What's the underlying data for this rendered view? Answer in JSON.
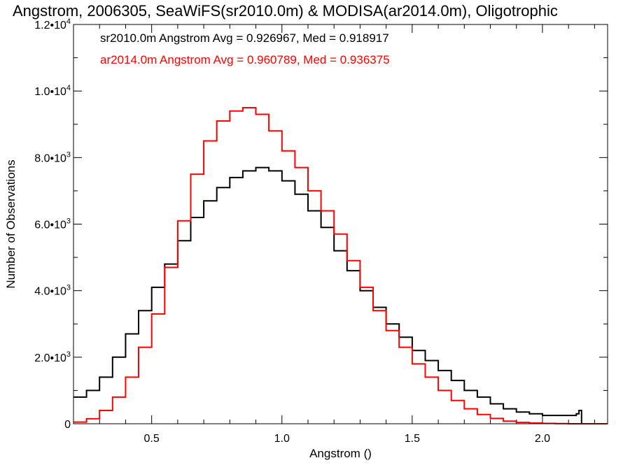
{
  "chart_data": {
    "type": "line",
    "title": "Angstrom, 2006305, SeaWiFS(sr2010.0m) & MODISA(ar2014.0m), Oligotrophic",
    "xlabel": "Angstrom ()",
    "ylabel": "Number of Observations",
    "xlim": [
      0.2,
      2.25
    ],
    "ylim": [
      0,
      12000
    ],
    "x_ticks": [
      {
        "value": 0.5,
        "label": "0.5"
      },
      {
        "value": 1.0,
        "label": "1.0"
      },
      {
        "value": 1.5,
        "label": "1.5"
      },
      {
        "value": 2.0,
        "label": "2.0"
      }
    ],
    "y_ticks": [
      {
        "value": 0,
        "label": "0",
        "mantissa": "0",
        "exponent": ""
      },
      {
        "value": 2000,
        "label": "2.0•10^3",
        "mantissa": "2.0•10",
        "exponent": "3"
      },
      {
        "value": 4000,
        "label": "4.0•10^3",
        "mantissa": "4.0•10",
        "exponent": "3"
      },
      {
        "value": 6000,
        "label": "6.0•10^3",
        "mantissa": "6.0•10",
        "exponent": "3"
      },
      {
        "value": 8000,
        "label": "8.0•10^3",
        "mantissa": "8.0•10",
        "exponent": "3"
      },
      {
        "value": 10000,
        "label": "1.0•10^4",
        "mantissa": "1.0•10",
        "exponent": "4"
      },
      {
        "value": 12000,
        "label": "1.2•10^4",
        "mantissa": "1.2•10",
        "exponent": "4"
      }
    ],
    "legend_position": "top-left",
    "legend": [
      {
        "text": "sr2010.0m Angstrom Avg = 0.926967, Med = 0.918917",
        "color": "#000000"
      },
      {
        "text": "ar2014.0m Angstrom Avg = 0.960789, Med = 0.936375",
        "color": "#ff0000"
      }
    ],
    "series": [
      {
        "color": "#000000",
        "x": [
          0.2,
          0.25,
          0.3,
          0.35,
          0.4,
          0.45,
          0.5,
          0.55,
          0.6,
          0.65,
          0.7,
          0.75,
          0.8,
          0.85,
          0.9,
          0.95,
          1.0,
          1.05,
          1.1,
          1.15,
          1.2,
          1.25,
          1.3,
          1.35,
          1.4,
          1.45,
          1.5,
          1.55,
          1.6,
          1.65,
          1.7,
          1.75,
          1.8,
          1.85,
          1.9,
          1.95,
          2.0,
          2.05,
          2.1,
          2.13,
          2.14,
          2.15
        ],
        "y": [
          800,
          1000,
          1400,
          2000,
          2700,
          3400,
          4100,
          4800,
          5500,
          6200,
          6700,
          7100,
          7400,
          7600,
          7700,
          7600,
          7300,
          6900,
          6400,
          5900,
          5200,
          4600,
          4000,
          3500,
          3000,
          2600,
          2200,
          1900,
          1600,
          1300,
          1000,
          800,
          600,
          450,
          350,
          300,
          250,
          250,
          250,
          300,
          400,
          0
        ]
      },
      {
        "color": "#ff0000",
        "x": [
          0.2,
          0.25,
          0.3,
          0.35,
          0.4,
          0.45,
          0.5,
          0.55,
          0.6,
          0.65,
          0.7,
          0.75,
          0.8,
          0.85,
          0.9,
          0.95,
          1.0,
          1.05,
          1.1,
          1.15,
          1.2,
          1.25,
          1.3,
          1.35,
          1.4,
          1.45,
          1.5,
          1.55,
          1.6,
          1.65,
          1.7,
          1.75,
          1.8,
          1.85,
          1.9,
          1.95,
          2.0,
          2.05,
          2.1,
          2.15,
          2.2,
          2.25
        ],
        "y": [
          50,
          150,
          400,
          800,
          1400,
          2300,
          3300,
          4700,
          6100,
          7500,
          8500,
          9100,
          9400,
          9500,
          9300,
          8800,
          8200,
          7700,
          7000,
          6400,
          5700,
          4900,
          4100,
          3400,
          2800,
          2300,
          1800,
          1400,
          1000,
          700,
          450,
          280,
          160,
          80,
          40,
          20,
          10,
          5,
          0,
          0,
          0,
          0
        ]
      }
    ]
  }
}
